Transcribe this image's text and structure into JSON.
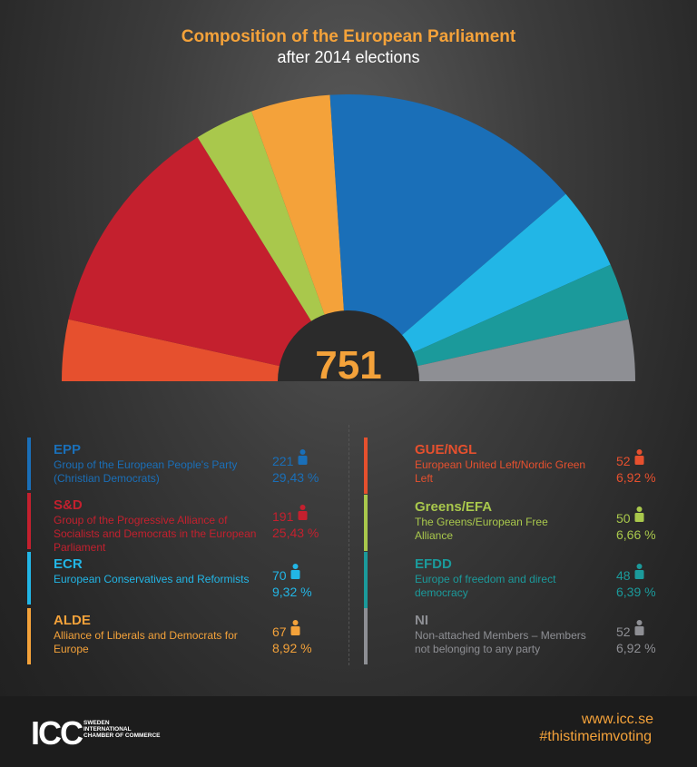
{
  "header": {
    "title": "Composition of the European Parliament",
    "subtitle": "after 2014 elections"
  },
  "total": "751",
  "legend": [
    {
      "abbr": "EPP",
      "desc": "Group of the European People's Party (Christian Democrats)",
      "seats": "221",
      "pct": "29,43 %",
      "color": "#1a6fb8"
    },
    {
      "abbr": "S&D",
      "desc": "Group of the Progressive Alliance of Socialists and Democrats in the European Parliament",
      "seats": "191",
      "pct": "25,43 %",
      "color": "#c4202e"
    },
    {
      "abbr": "ECR",
      "desc": "European Conservatives and Reformists",
      "seats": "70",
      "pct": "9,32 %",
      "color": "#22b6e6"
    },
    {
      "abbr": "ALDE",
      "desc": "Alliance of Liberals and Democrats for Europe",
      "seats": "67",
      "pct": "8,92 %",
      "color": "#f4a23a"
    },
    {
      "abbr": "GUE/NGL",
      "desc": "European United Left/Nordic Green Left",
      "seats": "52",
      "pct": "6,92 %",
      "color": "#e6502e"
    },
    {
      "abbr": "Greens/EFA",
      "desc": "The Greens/European Free Alliance",
      "seats": "50",
      "pct": "6,66 %",
      "color": "#a9c84c"
    },
    {
      "abbr": "EFDD",
      "desc": "Europe of freedom and direct democracy",
      "seats": "48",
      "pct": "6,39 %",
      "color": "#1b9a9b"
    },
    {
      "abbr": "NI",
      "desc": "Non-attached Members – Members not belonging to any party",
      "seats": "52",
      "pct": "6,92 %",
      "color": "#8e8f94"
    }
  ],
  "chart_data": {
    "type": "pie",
    "subtype": "semicircle",
    "title": "Composition of the European Parliament",
    "subtitle": "after 2014 elections",
    "total": 751,
    "slices_left_to_right": [
      {
        "label": "GUE/NGL",
        "value": 52,
        "color": "#e6502e"
      },
      {
        "label": "S&D",
        "value": 191,
        "color": "#c4202e"
      },
      {
        "label": "Greens/EFA",
        "value": 50,
        "color": "#a9c84c"
      },
      {
        "label": "ALDE",
        "value": 67,
        "color": "#f4a23a"
      },
      {
        "label": "EPP",
        "value": 221,
        "color": "#1a6fb8"
      },
      {
        "label": "ECR",
        "value": 70,
        "color": "#22b6e6"
      },
      {
        "label": "EFDD",
        "value": 48,
        "color": "#1b9a9b"
      },
      {
        "label": "NI",
        "value": 52,
        "color": "#8e8f94"
      }
    ]
  },
  "footer": {
    "logo_text": "ICC",
    "logo_sub_1": "SWEDEN",
    "logo_sub_2": "INTERNATIONAL",
    "logo_sub_3": "CHAMBER OF COMMERCE",
    "url": "www.icc.se",
    "hashtag": "#thistimeimvoting"
  }
}
